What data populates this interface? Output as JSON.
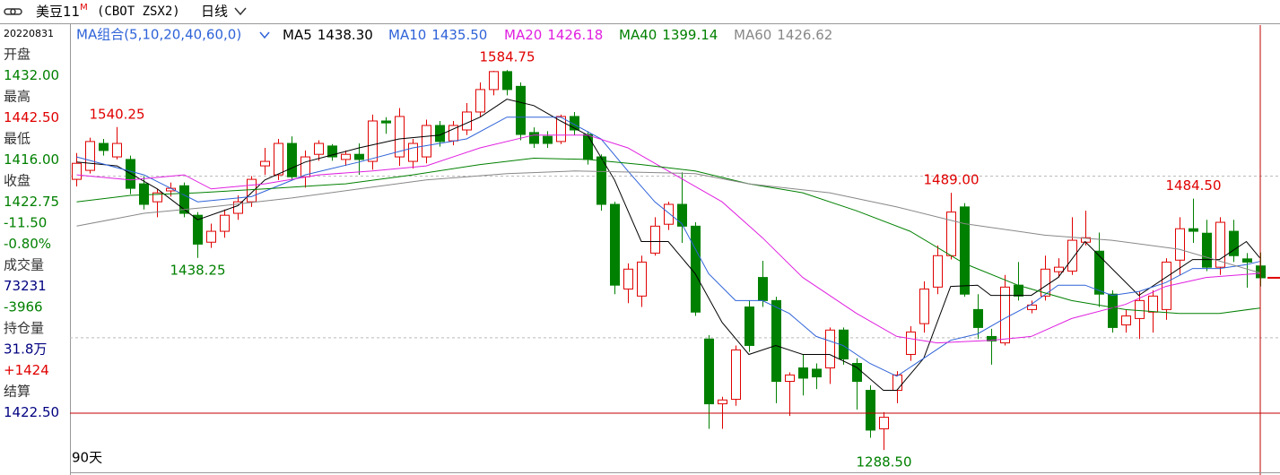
{
  "header": {
    "symbol": "美豆11",
    "symbol_sup": "M",
    "code": "(CBOT ZSX2)",
    "period": "日线"
  },
  "info_panel": {
    "date": "20220831",
    "rows": [
      {
        "text": "开盘",
        "color": "#333333"
      },
      {
        "text": "1432.00",
        "color": "#008000"
      },
      {
        "text": "最高",
        "color": "#333333"
      },
      {
        "text": "1442.50",
        "color": "#e00000"
      },
      {
        "text": "最低",
        "color": "#333333"
      },
      {
        "text": "1416.00",
        "color": "#008000"
      },
      {
        "text": "收盘",
        "color": "#333333"
      },
      {
        "text": "1422.75",
        "color": "#008000"
      },
      {
        "text": "-11.50",
        "color": "#008000"
      },
      {
        "text": "-0.80%",
        "color": "#008000"
      },
      {
        "text": "成交量",
        "color": "#333333"
      },
      {
        "text": "73231",
        "color": "#000080"
      },
      {
        "text": "-3966",
        "color": "#008000"
      },
      {
        "text": "持仓量",
        "color": "#333333"
      },
      {
        "text": "31.8万",
        "color": "#000080"
      },
      {
        "text": "+1424",
        "color": "#e00000"
      },
      {
        "text": "结算",
        "color": "#333333"
      },
      {
        "text": "1422.50",
        "color": "#000080"
      }
    ]
  },
  "chart_data": {
    "type": "candlestick",
    "legend_title": "MA组合(5,10,20,40,60,0)",
    "days_label": "90天",
    "up_color": "#e00000",
    "down_color": "#008000",
    "xlim": [
      -0.5,
      89.5
    ],
    "ylim": [
      1272.5,
      1619.75
    ],
    "gridlines": [
      1502,
      1376
    ],
    "open": [
      1499.5,
      1506.5,
      1527.5,
      1517,
      1515,
      1496,
      1482,
      1490.5,
      1494.5,
      1471.5,
      1450.5,
      1459,
      1473,
      1482,
      1510,
      1503,
      1527.5,
      1501.5,
      1519,
      1525.5,
      1515,
      1519,
      1513.5,
      1545,
      1517,
      1513.5,
      1517,
      1541.5,
      1529.5,
      1538,
      1552,
      1569.5,
      1583.5,
      1572,
      1536,
      1533,
      1529,
      1548.5,
      1534.5,
      1517,
      1480,
      1414,
      1408.5,
      1442,
      1464.5,
      1480,
      1463,
      1375,
      1324.5,
      1328,
      1400,
      1423,
      1405,
      1342,
      1352.5,
      1351.5,
      1352.5,
      1382,
      1356,
      1335,
      1305,
      1335,
      1363,
      1387,
      1415.5,
      1440,
      1478,
      1398,
      1377,
      1372,
      1417,
      1398,
      1408.5,
      1427.5,
      1428,
      1450.5,
      1443.5,
      1410,
      1386,
      1391,
      1396,
      1398,
      1436.5,
      1461,
      1457.5,
      1431,
      1459,
      1437.5,
      1432
    ],
    "high": [
      1520,
      1532,
      1531,
      1540.25,
      1518,
      1502,
      1492,
      1497,
      1497,
      1474,
      1465,
      1476,
      1487,
      1502,
      1524,
      1531,
      1533,
      1522,
      1530,
      1527,
      1522,
      1527.5,
      1550,
      1548,
      1555,
      1531,
      1546,
      1545,
      1545,
      1559,
      1575,
      1584,
      1584.75,
      1575,
      1540,
      1537,
      1550,
      1552,
      1537,
      1519,
      1482,
      1434,
      1440,
      1470,
      1482,
      1505,
      1466,
      1378,
      1330,
      1370,
      1405,
      1436,
      1408,
      1349,
      1363,
      1356,
      1384,
      1384,
      1360,
      1339,
      1318,
      1350,
      1385,
      1420,
      1448,
      1489,
      1481,
      1410,
      1383,
      1425,
      1435,
      1405,
      1440,
      1438,
      1470,
      1475,
      1458,
      1413,
      1398,
      1412,
      1413,
      1438,
      1470,
      1484.5,
      1468,
      1470,
      1468,
      1442,
      1442.5
    ],
    "low": [
      1494,
      1504,
      1518,
      1515,
      1488,
      1476,
      1470,
      1486,
      1470,
      1438.25,
      1446,
      1454,
      1468,
      1478,
      1503,
      1499,
      1499,
      1493,
      1514,
      1514,
      1510,
      1503,
      1507,
      1535,
      1510,
      1508,
      1512,
      1525,
      1526,
      1534,
      1548,
      1565,
      1565,
      1530,
      1524,
      1524,
      1527,
      1534,
      1511,
      1475,
      1410,
      1403,
      1400,
      1440,
      1460,
      1450,
      1393,
      1305,
      1305,
      1323,
      1365,
      1400,
      1325,
      1315,
      1331,
      1336,
      1340,
      1355,
      1320,
      1298,
      1288.5,
      1325,
      1358,
      1380,
      1410,
      1437,
      1408,
      1375,
      1355,
      1370,
      1405,
      1395,
      1405,
      1423,
      1425,
      1448,
      1400,
      1380,
      1380,
      1375,
      1380,
      1390,
      1425,
      1450,
      1428,
      1425,
      1435,
      1415,
      1416
    ],
    "close": [
      1512,
      1529,
      1522,
      1527.5,
      1492.5,
      1480,
      1489,
      1492.5,
      1473,
      1449,
      1459,
      1471.5,
      1482,
      1499.5,
      1513.5,
      1527.5,
      1501.5,
      1517,
      1527.5,
      1517,
      1519,
      1515,
      1545,
      1543.5,
      1548.5,
      1527.5,
      1541.5,
      1529,
      1541.5,
      1552,
      1569.5,
      1583.5,
      1569.5,
      1534.5,
      1527.5,
      1527.5,
      1548.5,
      1538,
      1515,
      1480,
      1417,
      1429.5,
      1435,
      1463,
      1480,
      1463,
      1396,
      1324.5,
      1327.5,
      1366.5,
      1370,
      1405,
      1342,
      1347,
      1344.5,
      1345.5,
      1382,
      1359.5,
      1342,
      1304,
      1314,
      1347,
      1380.5,
      1414,
      1440,
      1474,
      1410,
      1384,
      1373.5,
      1415.5,
      1408.5,
      1401.5,
      1429.5,
      1431,
      1452,
      1454,
      1410,
      1384,
      1393,
      1405,
      1408.5,
      1435,
      1461,
      1459,
      1431,
      1466,
      1440,
      1435,
      1422.75
    ],
    "high_labels": [
      null,
      null,
      null,
      "1540.25",
      null,
      null,
      null,
      null,
      null,
      null,
      null,
      null,
      null,
      null,
      null,
      null,
      null,
      null,
      null,
      null,
      null,
      null,
      null,
      null,
      null,
      null,
      null,
      null,
      null,
      null,
      null,
      null,
      "1584.75",
      null,
      null,
      null,
      null,
      null,
      null,
      null,
      null,
      null,
      null,
      null,
      null,
      null,
      null,
      null,
      null,
      null,
      null,
      null,
      null,
      null,
      null,
      null,
      null,
      null,
      null,
      null,
      null,
      null,
      null,
      null,
      null,
      "1489.00",
      null,
      null,
      null,
      null,
      null,
      null,
      null,
      null,
      null,
      null,
      null,
      null,
      null,
      null,
      null,
      null,
      null,
      "1484.50",
      null,
      null,
      null,
      null,
      null
    ],
    "low_labels": [
      null,
      null,
      null,
      null,
      null,
      null,
      null,
      null,
      null,
      "1438.25",
      null,
      null,
      null,
      null,
      null,
      null,
      null,
      null,
      null,
      null,
      null,
      null,
      null,
      null,
      null,
      null,
      null,
      null,
      null,
      null,
      null,
      null,
      null,
      null,
      null,
      null,
      null,
      null,
      null,
      null,
      null,
      null,
      null,
      null,
      null,
      null,
      null,
      null,
      null,
      null,
      null,
      null,
      null,
      null,
      null,
      null,
      null,
      null,
      null,
      null,
      "1288.50",
      null,
      null,
      null,
      null,
      null,
      null,
      null,
      null,
      null,
      null,
      null,
      null,
      null,
      null,
      null,
      null,
      null,
      null,
      null,
      null,
      null,
      null,
      null,
      null,
      null,
      null,
      null,
      null
    ],
    "series": [
      {
        "name": "MA5",
        "color": "#000000",
        "legend_value": "1438.30",
        "x": [
          0,
          3,
          6,
          9,
          12,
          14,
          17,
          21,
          24,
          27,
          30,
          32,
          34,
          36,
          38,
          40,
          42,
          44,
          46,
          48,
          50,
          52,
          54,
          56,
          58,
          60,
          61,
          63,
          65,
          67,
          68,
          71,
          73,
          75,
          77,
          79,
          81,
          83,
          85,
          87,
          88
        ],
        "values": [
          1513,
          1510,
          1492,
          1468,
          1479,
          1499,
          1513,
          1524,
          1531,
          1534,
          1548,
          1562,
          1557,
          1545,
          1534,
          1499,
          1451,
          1451,
          1426,
          1388,
          1363,
          1370,
          1363,
          1363,
          1353,
          1335,
          1335,
          1360,
          1416,
          1417,
          1409,
          1409,
          1423,
          1451,
          1430,
          1409,
          1423,
          1437,
          1437,
          1451,
          1438.3
        ]
      },
      {
        "name": "MA10",
        "color": "#2f63d8",
        "legend_value": "1435.50",
        "x": [
          0,
          5,
          9,
          13,
          17,
          21,
          25,
          29,
          32,
          36,
          39,
          41,
          43,
          45,
          47,
          49,
          51,
          53,
          55,
          57,
          59,
          61,
          63,
          65,
          67,
          69,
          71,
          73,
          75,
          77,
          79,
          81,
          83,
          85,
          87,
          88
        ],
        "values": [
          1517,
          1503,
          1482,
          1486,
          1503,
          1513,
          1524,
          1531,
          1548,
          1548,
          1531,
          1506,
          1482,
          1465,
          1426,
          1405,
          1405,
          1395,
          1377,
          1370,
          1356,
          1346,
          1360,
          1374,
          1379,
          1391,
          1402,
          1417,
          1417,
          1409,
          1412,
          1419,
          1430,
          1430,
          1433,
          1435.5
        ]
      },
      {
        "name": "MA20",
        "color": "#e020e0",
        "legend_value": "1426.18",
        "x": [
          0,
          4,
          8,
          10,
          14,
          18,
          22,
          26,
          30,
          34,
          38,
          41,
          44,
          48,
          51,
          54,
          58,
          61,
          64,
          68,
          71,
          74,
          78,
          81,
          84,
          88
        ],
        "values": [
          1503,
          1499,
          1503,
          1492,
          1496,
          1503,
          1506,
          1510,
          1524,
          1534,
          1534,
          1524,
          1506,
          1482,
          1454,
          1423,
          1395,
          1377,
          1372,
          1374,
          1377,
          1391,
          1402,
          1416,
          1423,
          1426.18
        ]
      },
      {
        "name": "MA40",
        "color": "#008000",
        "legend_value": "1399.14",
        "x": [
          0,
          4,
          9,
          14,
          20,
          25,
          30,
          34,
          38,
          42,
          46,
          50,
          54,
          58,
          62,
          66,
          70,
          74,
          78,
          82,
          85,
          88
        ],
        "values": [
          1482,
          1487,
          1489,
          1492,
          1496,
          1503,
          1511,
          1516,
          1515,
          1511,
          1506,
          1496,
          1489,
          1475,
          1459,
          1434,
          1417,
          1405,
          1398,
          1395,
          1395,
          1399.14
        ]
      },
      {
        "name": "MA60",
        "color": "#888888",
        "legend_value": "1426.62",
        "x": [
          0,
          5,
          10,
          16,
          21,
          26,
          32,
          37,
          42,
          46,
          50,
          56,
          61,
          66,
          72,
          77,
          82,
          88
        ],
        "values": [
          1463,
          1473,
          1478,
          1485,
          1492,
          1499,
          1504,
          1506,
          1505,
          1504,
          1496,
          1489,
          1478,
          1465,
          1456,
          1452,
          1445,
          1426.62
        ]
      }
    ]
  }
}
